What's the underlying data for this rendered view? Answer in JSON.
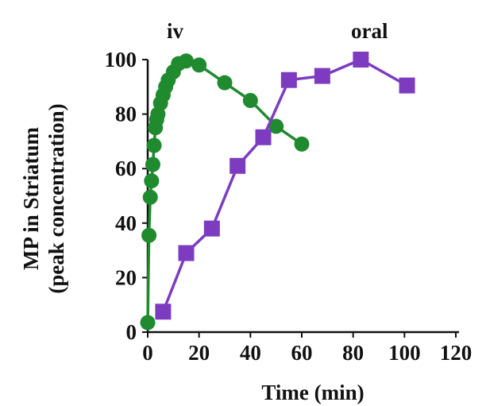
{
  "chart_data": {
    "type": "line",
    "title": "",
    "xlabel": "Time (min)",
    "ylabel_lines": [
      "MP in Striatum",
      "(peak concentration)"
    ],
    "xlim": [
      0,
      120
    ],
    "ylim": [
      0,
      100
    ],
    "x_ticks": [
      "0",
      "20",
      "40",
      "60",
      "80",
      "100",
      "120"
    ],
    "y_ticks": [
      "0",
      "20",
      "40",
      "60",
      "80",
      "100"
    ],
    "grid": false,
    "series": [
      {
        "name": "iv",
        "color": "#1f8a2e",
        "marker": "circle",
        "x": [
          0,
          0.5,
          1,
          1.5,
          2,
          2.5,
          3,
          3.5,
          4,
          5,
          6,
          7,
          8,
          10,
          12,
          15,
          20,
          30,
          40,
          50,
          60
        ],
        "y": [
          3.5,
          35.5,
          49.5,
          55.5,
          61.5,
          68.5,
          75,
          78,
          80,
          84,
          87,
          90,
          92.5,
          95.5,
          98.5,
          99.5,
          98,
          91.5,
          85,
          75.5,
          69
        ]
      },
      {
        "name": "oral",
        "color": "#7d3cc0",
        "marker": "square",
        "x": [
          6,
          15,
          25,
          35,
          45,
          55,
          68,
          83,
          101
        ],
        "y": [
          7.5,
          29,
          38,
          61,
          71.5,
          92.5,
          94,
          100,
          90.5
        ]
      }
    ]
  }
}
